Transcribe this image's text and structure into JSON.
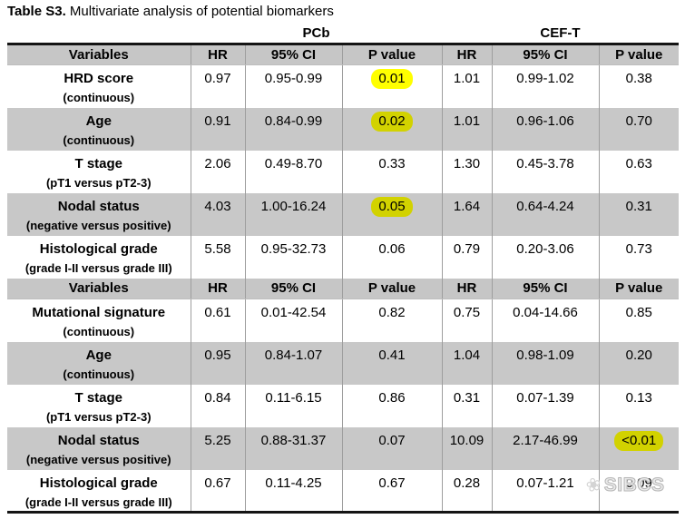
{
  "title": {
    "prefix": "Table S3.",
    "text": " Multivariate analysis of potential biomarkers"
  },
  "table": {
    "group_headers": [
      {
        "label": "PCb"
      },
      {
        "label": "CEF-T"
      }
    ],
    "column_headers": [
      "Variables",
      "HR",
      "95% CI",
      "P value",
      "HR",
      "95% CI",
      "P value"
    ],
    "sections": [
      {
        "rows": [
          {
            "variable": "HRD score",
            "detail": "(continuous)",
            "shaded": false,
            "cells": [
              {
                "text": "0.97"
              },
              {
                "text": "0.95-0.99"
              },
              {
                "text": "0.01",
                "highlight": true
              },
              {
                "text": "1.01"
              },
              {
                "text": "0.99-1.02"
              },
              {
                "text": "0.38"
              }
            ]
          },
          {
            "variable": "Age",
            "detail": "(continuous)",
            "shaded": true,
            "cells": [
              {
                "text": "0.91"
              },
              {
                "text": "0.84-0.99"
              },
              {
                "text": "0.02",
                "highlight": true
              },
              {
                "text": "1.01"
              },
              {
                "text": "0.96-1.06"
              },
              {
                "text": "0.70"
              }
            ]
          },
          {
            "variable": "T stage",
            "detail": "(pT1 versus pT2-3)",
            "shaded": false,
            "cells": [
              {
                "text": "2.06"
              },
              {
                "text": "0.49-8.70"
              },
              {
                "text": "0.33"
              },
              {
                "text": "1.30"
              },
              {
                "text": "0.45-3.78"
              },
              {
                "text": "0.63"
              }
            ]
          },
          {
            "variable": "Nodal status",
            "detail": "(negative versus positive)",
            "shaded": true,
            "cells": [
              {
                "text": "4.03"
              },
              {
                "text": "1.00-16.24"
              },
              {
                "text": "0.05",
                "highlight": true
              },
              {
                "text": "1.64"
              },
              {
                "text": "0.64-4.24"
              },
              {
                "text": "0.31"
              }
            ]
          },
          {
            "variable": "Histological grade",
            "detail": "(grade I-II versus grade III)",
            "shaded": false,
            "cells": [
              {
                "text": "5.58"
              },
              {
                "text": "0.95-32.73"
              },
              {
                "text": "0.06"
              },
              {
                "text": "0.79"
              },
              {
                "text": "0.20-3.06"
              },
              {
                "text": "0.73"
              }
            ]
          }
        ]
      },
      {
        "rows": [
          {
            "variable": "Mutational signature",
            "detail": "(continuous)",
            "shaded": false,
            "cells": [
              {
                "text": "0.61"
              },
              {
                "text": "0.01-42.54"
              },
              {
                "text": "0.82"
              },
              {
                "text": "0.75"
              },
              {
                "text": "0.04-14.66"
              },
              {
                "text": "0.85"
              }
            ]
          },
          {
            "variable": "Age",
            "detail": "(continuous)",
            "shaded": true,
            "cells": [
              {
                "text": "0.95"
              },
              {
                "text": "0.84-1.07"
              },
              {
                "text": "0.41"
              },
              {
                "text": "1.04"
              },
              {
                "text": "0.98-1.09"
              },
              {
                "text": "0.20"
              }
            ]
          },
          {
            "variable": "T stage",
            "detail": "(pT1 versus pT2-3)",
            "shaded": false,
            "cells": [
              {
                "text": "0.84"
              },
              {
                "text": "0.11-6.15"
              },
              {
                "text": "0.86"
              },
              {
                "text": "0.31"
              },
              {
                "text": "0.07-1.39"
              },
              {
                "text": "0.13"
              }
            ]
          },
          {
            "variable": "Nodal status",
            "detail": "(negative versus positive)",
            "shaded": true,
            "cells": [
              {
                "text": "5.25"
              },
              {
                "text": "0.88-31.37"
              },
              {
                "text": "0.07"
              },
              {
                "text": "10.09"
              },
              {
                "text": "2.17-46.99"
              },
              {
                "text": "<0.01",
                "highlight": true
              }
            ]
          },
          {
            "variable": "Histological grade",
            "detail": "(grade I-II versus grade III)",
            "shaded": false,
            "cells": [
              {
                "text": "0.67"
              },
              {
                "text": "0.11-4.25"
              },
              {
                "text": "0.67"
              },
              {
                "text": "0.28"
              },
              {
                "text": "0.07-1.21"
              },
              {
                "text": "0.09"
              }
            ]
          }
        ]
      }
    ],
    "colors": {
      "header_bg": "#c6c6c6",
      "shaded_row_bg": "#c8c8c8",
      "highlight_on_white": "#ffff00",
      "highlight_on_shaded": "#d2d200",
      "top_border": "#141414",
      "column_divider": "#9e9e9e"
    }
  },
  "watermark": {
    "text": "SIBCS",
    "icon": "flower-icon"
  }
}
